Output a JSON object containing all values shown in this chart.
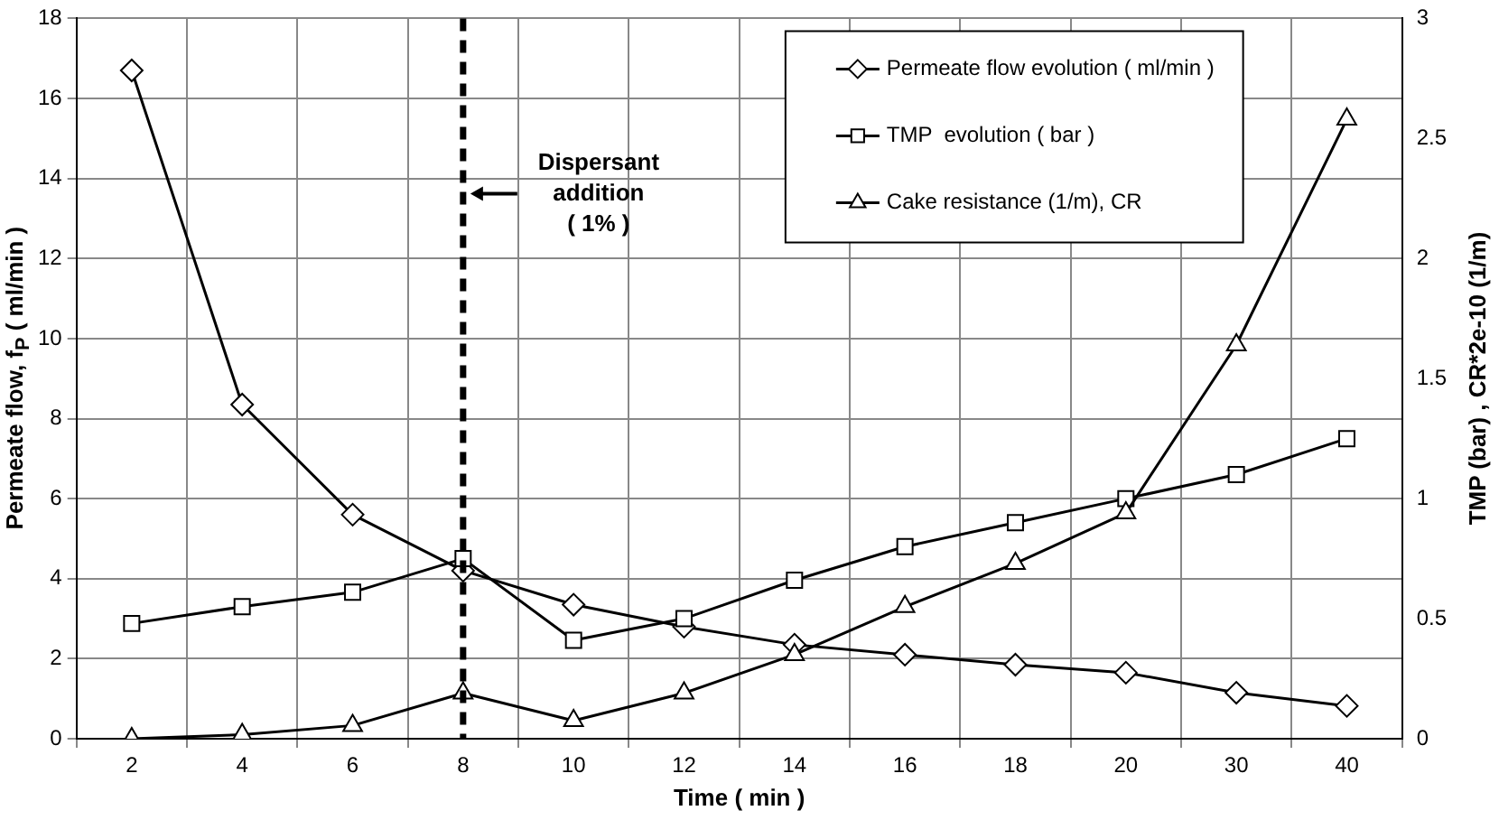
{
  "chart_data": {
    "type": "line",
    "xlabel": "Time ( min )",
    "ylabel": "Permeate flow, f$_{P}$ ( ml/min )",
    "y2label": "TMP (bar) , CR*2e-10 (1/m)",
    "categories": [
      "2",
      "4",
      "6",
      "8",
      "10",
      "12",
      "14",
      "16",
      "18",
      "20",
      "30",
      "40"
    ],
    "series": [
      {
        "name": "Permeate flow evolution ( ml/min )",
        "color": "#000000",
        "marker": "diamond",
        "values": [
          16.7,
          8.35,
          5.6,
          4.2,
          3.35,
          2.8,
          2.35,
          2.1,
          1.85,
          1.65,
          1.15,
          0.82
        ]
      },
      {
        "name": "TMP  evolution ( bar )",
        "color": "#000000",
        "marker": "square",
        "axis": "y2",
        "values": [
          0.48,
          0.55,
          0.61,
          0.75,
          0.41,
          0.5,
          0.66,
          0.8,
          0.9,
          1.0,
          1.1,
          1.25
        ]
      },
      {
        "name": "Cake resistance (1/m), CR",
        "color": "#000000",
        "marker": "triangle",
        "axis": "y2",
        "values": [
          0,
          0.017,
          0.055,
          0.19,
          0.075,
          0.19,
          0.35,
          0.55,
          0.73,
          0.94,
          1.64,
          2.58
        ]
      }
    ],
    "ylim": [
      0,
      18
    ],
    "yticks": [
      0,
      2,
      4,
      6,
      8,
      10,
      12,
      14,
      16,
      18
    ],
    "y2lim": [
      0,
      3
    ],
    "y2ticks": [
      0,
      0.5,
      1,
      1.5,
      2,
      2.5,
      3
    ],
    "ref_lines": [
      {
        "axis": "x",
        "value": "8",
        "label": "Dispersant addition ( 1% )",
        "line_style": "dashed"
      }
    ],
    "grid": true,
    "legend": "top right",
    "line_style": "solid"
  }
}
